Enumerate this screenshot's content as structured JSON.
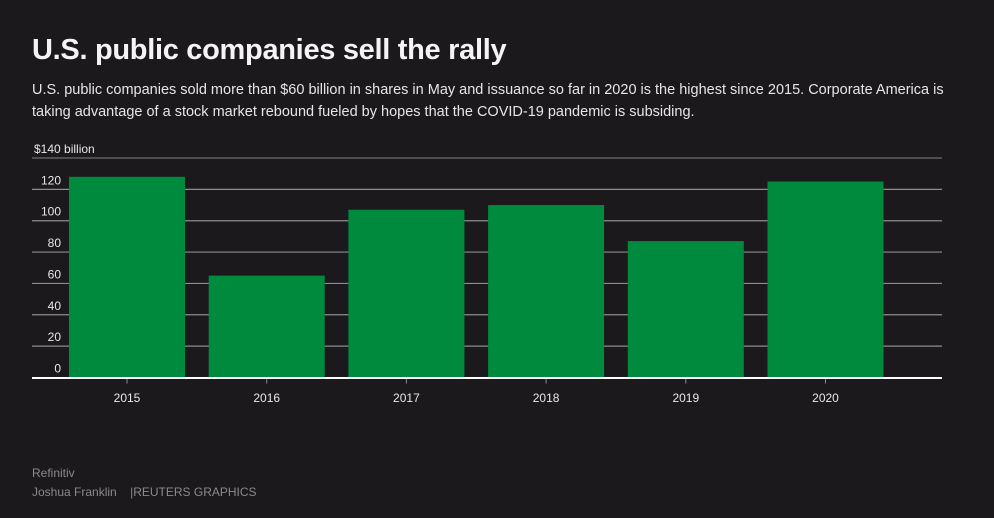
{
  "header": {
    "title": "U.S. public companies sell the rally",
    "subtitle": "U.S. public companies sold more than $60 billion in shares in May and issuance so far in 2020 is the highest since 2015. Corporate America is taking advantage of a stock market rebound fueled by hopes that the COVID-19 pandemic is subsiding."
  },
  "chart_data": {
    "type": "bar",
    "title": "U.S. public companies sell the rally",
    "xlabel": "",
    "ylabel": "billion",
    "y_unit_label": "billion",
    "y_top_prefix": "$",
    "categories": [
      "2015",
      "2016",
      "2017",
      "2018",
      "2019",
      "2020"
    ],
    "values": [
      128,
      65,
      107,
      110,
      87,
      125
    ],
    "ylim": [
      0,
      140
    ],
    "yticks": [
      0,
      20,
      40,
      60,
      80,
      100,
      120,
      140
    ],
    "grid": true,
    "bar_color": "#008a3e",
    "legend": "none"
  },
  "footer": {
    "source": "Refinitiv",
    "author": "Joshua Franklin",
    "separator": "|",
    "brand": "REUTERS GRAPHICS"
  }
}
